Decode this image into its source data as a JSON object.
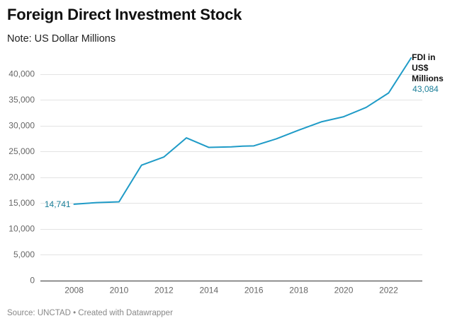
{
  "header": {
    "title": "Foreign Direct Investment Stock",
    "subtitle": "Note: US Dollar Millions"
  },
  "footer": {
    "source": "Source: UNCTAD • Created with Datawrapper"
  },
  "colors": {
    "line": "#1f9bc7",
    "label": "#1b7f99",
    "grid": "#e3e3e3",
    "axis": "#333333"
  },
  "chart_data": {
    "type": "line",
    "title": "Foreign Direct Investment Stock",
    "subtitle": "Note: US Dollar Millions",
    "xlabel": "",
    "ylabel": "",
    "xlim": [
      2006.5,
      2023.5
    ],
    "ylim": [
      0,
      40000
    ],
    "x_ticks": [
      2008,
      2010,
      2012,
      2014,
      2016,
      2018,
      2020,
      2022
    ],
    "x_tick_labels": [
      "2008",
      "2010",
      "2012",
      "2014",
      "2016",
      "2018",
      "2020",
      "2022"
    ],
    "y_ticks": [
      0,
      5000,
      10000,
      15000,
      20000,
      25000,
      30000,
      35000,
      40000
    ],
    "y_tick_labels": [
      "0",
      "5,000",
      "10,000",
      "15,000",
      "20,000",
      "25,000",
      "30,000",
      "35,000",
      "40,000"
    ],
    "grid": true,
    "legend": "none",
    "series": [
      {
        "name": "FDI in US$ Millions",
        "name_lines": [
          "FDI in",
          "US$",
          "Millions"
        ],
        "x": [
          2008,
          2008.5,
          2009,
          2010,
          2011,
          2012,
          2013,
          2014,
          2015,
          2015.5,
          2016,
          2017,
          2018,
          2019,
          2020,
          2021,
          2022,
          2023
        ],
        "y": [
          14741,
          14900,
          15050,
          15200,
          22300,
          23900,
          27600,
          25750,
          25850,
          26000,
          26050,
          27400,
          29100,
          30700,
          31700,
          33500,
          36300,
          43084
        ],
        "start_label": "14,741",
        "end_label": "43,084"
      }
    ]
  }
}
